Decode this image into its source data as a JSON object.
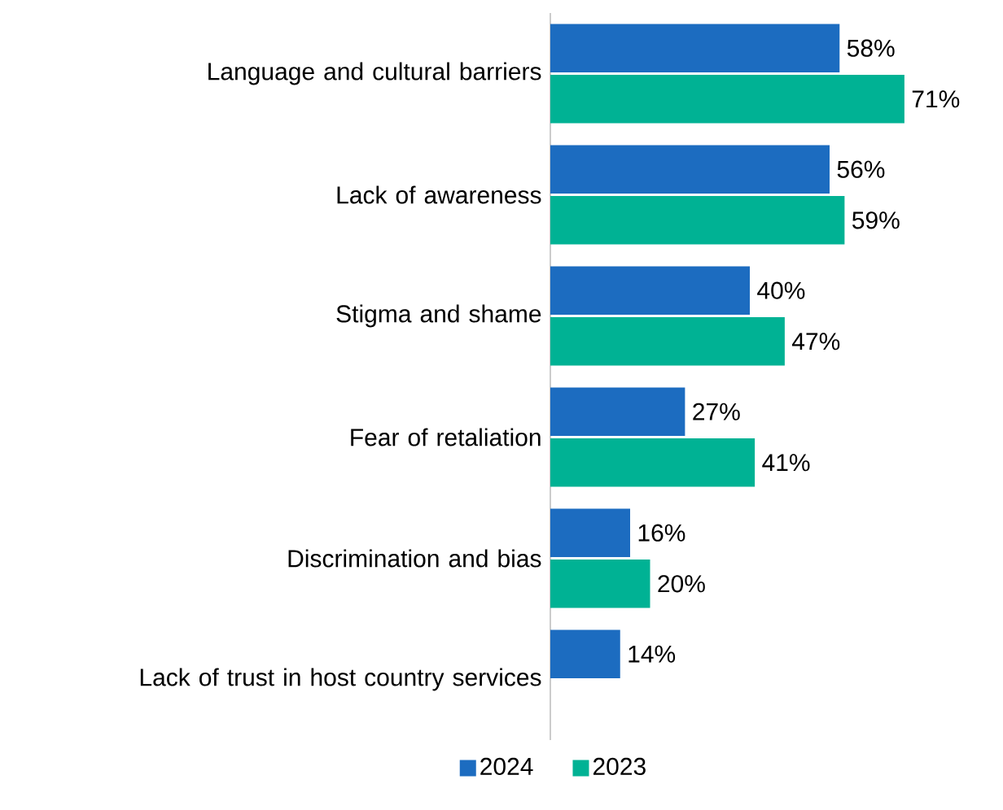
{
  "chart_data": {
    "type": "bar",
    "orientation": "horizontal",
    "legend": "bottom",
    "categories": [
      "Language and cultural barriers",
      "Lack of awareness",
      "Stigma and shame",
      "Fear of retaliation",
      "Discrimination and bias",
      "Lack of trust in host country services"
    ],
    "series": [
      {
        "name": "2024",
        "color": "#1c6cc0",
        "values": [
          58,
          56,
          40,
          27,
          16,
          14
        ],
        "value_labels": [
          "58%",
          "56%",
          "40%",
          "27%",
          "16%",
          "14%"
        ]
      },
      {
        "name": "2023",
        "color": "#00b294",
        "values": [
          71,
          59,
          47,
          41,
          20,
          null
        ],
        "value_labels": [
          "71%",
          "59%",
          "47%",
          "41%",
          "20%",
          null
        ]
      }
    ]
  }
}
